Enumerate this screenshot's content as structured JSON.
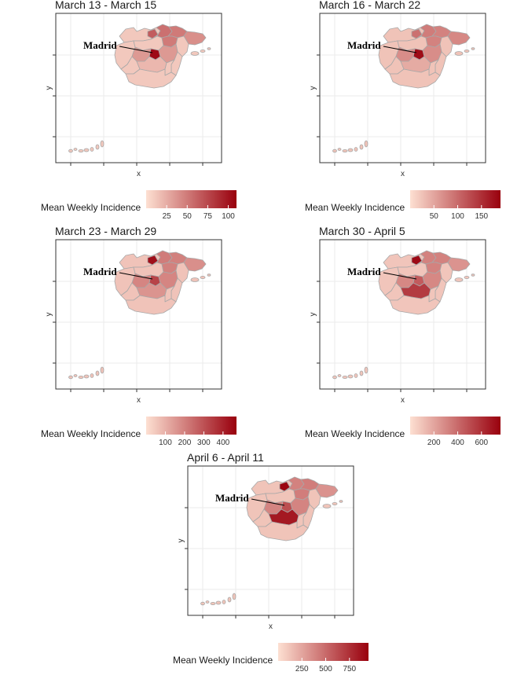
{
  "figure": {
    "annotation_label": "Madrid"
  },
  "colors": {
    "scale_low": "#fde0d2",
    "scale_high": "#99000d",
    "province_border": "#a8a8a8",
    "grid": "#ebebeb",
    "panel_border": "#333333"
  },
  "chart_data": [
    {
      "type": "map",
      "title": "March 13 - March 15",
      "xlabel": "x",
      "ylabel": "y",
      "grid": true,
      "legend": {
        "title": "Mean Weekly Incidence",
        "position": "bottom",
        "ticks": [
          25,
          50,
          75,
          100
        ],
        "range": [
          0,
          110
        ]
      },
      "highlighted_region": "Madrid",
      "region_values": {
        "madrid": 105,
        "north_dark": 65,
        "north_mid": 50,
        "center": 35,
        "south_mid": 20,
        "catalonia": 40,
        "basque": 55,
        "other": 12
      }
    },
    {
      "type": "map",
      "title": "March 16 - March 22",
      "xlabel": "x",
      "ylabel": "y",
      "grid": true,
      "legend": {
        "title": "Mean Weekly Incidence",
        "position": "bottom",
        "ticks": [
          50,
          100,
          150
        ],
        "range": [
          0,
          190
        ]
      },
      "highlighted_region": "Madrid",
      "region_values": {
        "madrid": 180,
        "north_dark": 95,
        "north_mid": 80,
        "center": 70,
        "south_mid": 45,
        "catalonia": 75,
        "basque": 85,
        "other": 25
      }
    },
    {
      "type": "map",
      "title": "March 23 - March 29",
      "xlabel": "x",
      "ylabel": "y",
      "grid": true,
      "legend": {
        "title": "Mean Weekly Incidence",
        "position": "bottom",
        "ticks": [
          100,
          200,
          300,
          400
        ],
        "range": [
          0,
          470
        ]
      },
      "highlighted_region": "Madrid",
      "region_values": {
        "madrid": 330,
        "north_dark": 440,
        "north_mid": 200,
        "center": 190,
        "south_mid": 160,
        "catalonia": 170,
        "basque": 210,
        "other": 60
      }
    },
    {
      "type": "map",
      "title": "March 30 - April 5",
      "xlabel": "x",
      "ylabel": "y",
      "grid": true,
      "legend": {
        "title": "Mean Weekly Incidence",
        "position": "bottom",
        "ticks": [
          200,
          400,
          600
        ],
        "range": [
          0,
          760
        ]
      },
      "highlighted_region": "Madrid",
      "region_values": {
        "madrid": 450,
        "north_dark": 730,
        "north_mid": 320,
        "center": 300,
        "south_mid": 560,
        "catalonia": 260,
        "basque": 320,
        "other": 90
      }
    },
    {
      "type": "map",
      "title": "April 6 - April 11",
      "xlabel": "x",
      "ylabel": "y",
      "grid": true,
      "legend": {
        "title": "Mean Weekly Incidence",
        "position": "bottom",
        "ticks": [
          250,
          500,
          750
        ],
        "range": [
          0,
          950
        ]
      },
      "highlighted_region": "Madrid",
      "region_values": {
        "madrid": 620,
        "north_dark": 930,
        "north_mid": 420,
        "center": 390,
        "south_mid": 850,
        "catalonia": 330,
        "basque": 400,
        "other": 120
      }
    }
  ]
}
